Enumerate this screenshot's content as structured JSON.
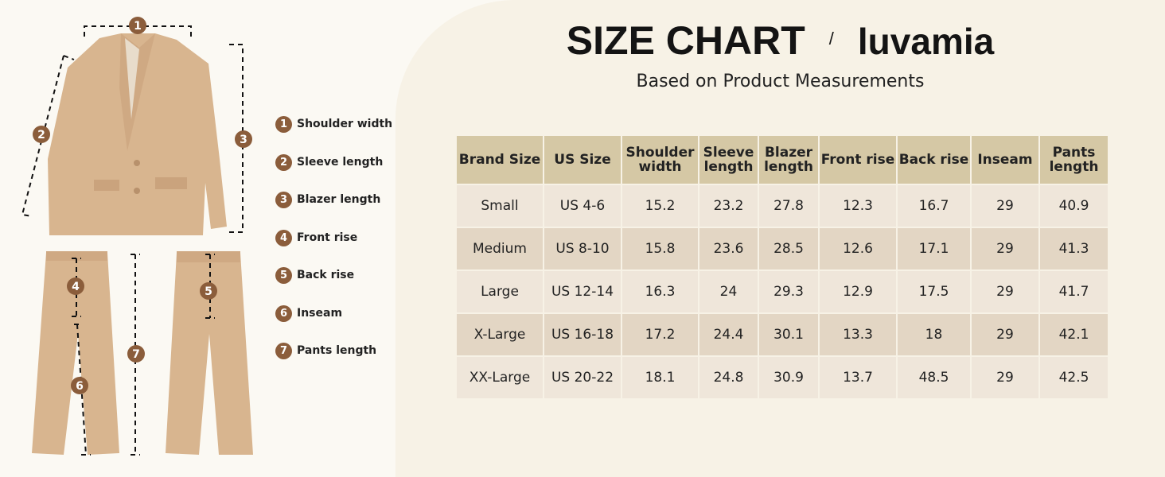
{
  "header": {
    "title": "SIZE CHART",
    "separator": "/",
    "brand": "luvamia",
    "subtitle": "Based on Product Measurements"
  },
  "legend": [
    {
      "number": "1",
      "label": "Shoulder width"
    },
    {
      "number": "2",
      "label": "Sleeve length"
    },
    {
      "number": "3",
      "label": "Blazer length"
    },
    {
      "number": "4",
      "label": "Front rise"
    },
    {
      "number": "5",
      "label": "Back rise"
    },
    {
      "number": "6",
      "label": "Inseam"
    },
    {
      "number": "7",
      "label": "Pants length"
    }
  ],
  "table": {
    "columns": [
      "Brand Size",
      "US Size",
      "Shoulder width",
      "Sleeve length",
      "Blazer length",
      "Front rise",
      "Back rise",
      "Inseam",
      "Pants length"
    ],
    "rows": [
      [
        "Small",
        "US 4-6",
        15.2,
        23.2,
        27.8,
        12.3,
        16.7,
        29,
        40.9
      ],
      [
        "Medium",
        "US 8-10",
        15.8,
        23.6,
        28.5,
        12.6,
        17.1,
        29,
        41.3
      ],
      [
        "Large",
        "US 12-14",
        16.3,
        24,
        29.3,
        12.9,
        17.5,
        29,
        41.7
      ],
      [
        "X-Large",
        "US 16-18",
        17.2,
        24.4,
        30.1,
        13.3,
        18,
        29,
        42.1
      ],
      [
        "XX-Large",
        "US 20-22",
        18.1,
        24.8,
        30.9,
        13.7,
        48.5,
        29,
        42.5
      ]
    ]
  }
}
